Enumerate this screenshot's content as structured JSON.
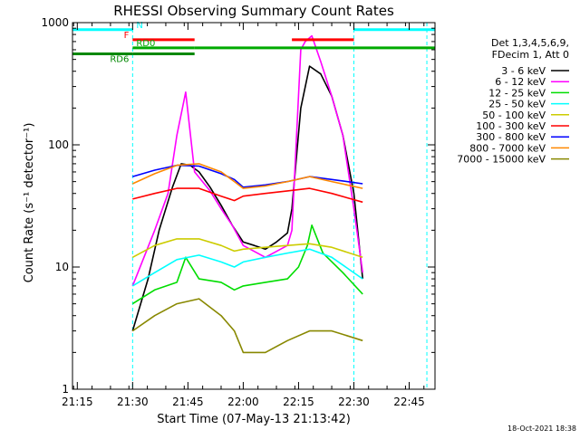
{
  "chart_data": {
    "type": "line",
    "title": "RHESSI Observing Summary Count Rates",
    "xlabel": "Start Time (07-May-13 21:13:42)",
    "ylabel": "Count Rate (s⁻¹ detector⁻¹)",
    "ylog": true,
    "ylim": [
      1,
      1000
    ],
    "xlim": [
      21.2283,
      22.8667
    ],
    "x_ticks": [
      {
        "v": 21.25,
        "label": "21:15"
      },
      {
        "v": 21.5,
        "label": "21:30"
      },
      {
        "v": 21.75,
        "label": "21:45"
      },
      {
        "v": 22.0,
        "label": "22:00"
      },
      {
        "v": 22.25,
        "label": "22:15"
      },
      {
        "v": 22.5,
        "label": "22:30"
      },
      {
        "v": 22.75,
        "label": "22:45"
      }
    ],
    "y_ticks": [
      {
        "v": 1,
        "label": "1"
      },
      {
        "v": 10,
        "label": "10"
      },
      {
        "v": 100,
        "label": "100"
      },
      {
        "v": 1000,
        "label": "1000"
      }
    ],
    "legend_header": [
      "Det 1,3,4,5,6,9,",
      "FDecim 1, Att 0"
    ],
    "legend_position": "right",
    "footer": "18-Oct-2021 18:38",
    "series": [
      {
        "name": "3 - 6 keV",
        "color": "#000000",
        "x": [
          21.5,
          21.57,
          21.62,
          21.68,
          21.72,
          21.76,
          21.8,
          21.85,
          21.9,
          21.95,
          22.0,
          22.05,
          22.1,
          22.15,
          22.2,
          22.22,
          22.26,
          22.3,
          22.35,
          22.4,
          22.45,
          22.5,
          22.54
        ],
        "values": [
          3,
          8,
          20,
          45,
          70,
          68,
          60,
          45,
          32,
          22,
          16,
          15,
          14,
          16,
          19,
          30,
          200,
          440,
          380,
          250,
          120,
          40,
          8
        ]
      },
      {
        "name": "6 - 12 keV",
        "color": "#ff00ff",
        "x": [
          21.5,
          21.6,
          21.66,
          21.7,
          21.74,
          21.78,
          21.85,
          21.9,
          21.95,
          22.0,
          22.1,
          22.2,
          22.22,
          22.26,
          22.28,
          22.31,
          22.35,
          22.4,
          22.45,
          22.5,
          22.54
        ],
        "values": [
          7,
          20,
          40,
          120,
          270,
          60,
          42,
          30,
          22,
          15,
          12,
          15,
          20,
          600,
          700,
          780,
          480,
          250,
          120,
          30,
          9
        ]
      },
      {
        "name": "12 - 25 keV",
        "color": "#00dd00",
        "x": [
          21.5,
          21.6,
          21.7,
          21.74,
          21.8,
          21.9,
          21.96,
          22.0,
          22.1,
          22.2,
          22.25,
          22.29,
          22.31,
          22.36,
          22.45,
          22.54
        ],
        "values": [
          5,
          6.5,
          7.5,
          12,
          8,
          7.5,
          6.5,
          7,
          7.5,
          8,
          10,
          15,
          22,
          13,
          9,
          6
        ]
      },
      {
        "name": "25 - 50 keV",
        "color": "#00ffff",
        "x": [
          21.5,
          21.6,
          21.7,
          21.8,
          21.9,
          21.96,
          22.0,
          22.1,
          22.2,
          22.3,
          22.4,
          22.54
        ],
        "values": [
          7,
          9,
          11.5,
          12.5,
          11,
          10,
          11,
          12,
          13,
          14,
          12,
          8
        ]
      },
      {
        "name": "50 - 100 keV",
        "color": "#cccc00",
        "x": [
          21.5,
          21.6,
          21.7,
          21.8,
          21.9,
          21.96,
          22.0,
          22.1,
          22.2,
          22.3,
          22.4,
          22.54
        ],
        "values": [
          12,
          15,
          17,
          17,
          15,
          13.5,
          14,
          14.5,
          15,
          15.5,
          14.5,
          12
        ]
      },
      {
        "name": "100 - 300 keV",
        "color": "#ff0000",
        "x": [
          21.5,
          21.6,
          21.7,
          21.8,
          21.9,
          21.96,
          22.0,
          22.1,
          22.2,
          22.3,
          22.4,
          22.54
        ],
        "values": [
          36,
          40,
          44,
          44,
          38,
          35,
          38,
          40,
          42,
          44,
          40,
          34
        ]
      },
      {
        "name": "300 - 800 keV",
        "color": "#0000ff",
        "x": [
          21.5,
          21.6,
          21.7,
          21.8,
          21.9,
          21.96,
          22.0,
          22.1,
          22.2,
          22.3,
          22.4,
          22.54
        ],
        "values": [
          55,
          62,
          68,
          67,
          58,
          52,
          45,
          47,
          50,
          55,
          52,
          48
        ]
      },
      {
        "name": "800 - 7000 keV",
        "color": "#ff8800",
        "x": [
          21.5,
          21.6,
          21.7,
          21.8,
          21.9,
          21.96,
          22.0,
          22.1,
          22.2,
          22.3,
          22.4,
          22.54
        ],
        "values": [
          48,
          58,
          68,
          70,
          60,
          50,
          44,
          46,
          50,
          55,
          50,
          44
        ]
      },
      {
        "name": "7000 - 15000 keV",
        "color": "#888800",
        "x": [
          21.5,
          21.6,
          21.7,
          21.8,
          21.9,
          21.96,
          22.0,
          22.1,
          22.2,
          22.3,
          22.4,
          22.54
        ],
        "values": [
          3,
          4,
          5,
          5.5,
          4,
          3,
          2,
          2,
          2.5,
          3,
          3,
          2.5
        ]
      }
    ],
    "flag_lines": [
      {
        "label": "N",
        "color": "#00ffff",
        "y_fraction": 0.9808,
        "segments": [
          [
            21.2283,
            21.5
          ],
          [
            22.5,
            22.8667
          ]
        ]
      },
      {
        "label": "F",
        "color": "#ff0000",
        "y_fraction": 0.9533,
        "segments": [
          [
            21.5,
            21.78
          ],
          [
            22.22,
            22.5
          ]
        ]
      },
      {
        "label": "RD0",
        "color": "#00aa00",
        "y_fraction": 0.9313,
        "segments": [
          [
            21.5,
            21.78
          ],
          [
            21.78,
            22.5
          ],
          [
            22.5,
            22.8667
          ]
        ]
      },
      {
        "label": "RD6",
        "color": "#008800",
        "y_fraction": 0.9148,
        "segments": [
          [
            21.2283,
            21.5
          ],
          [
            21.5,
            21.78
          ]
        ]
      }
    ],
    "vertical_markers": [
      {
        "x": 21.5,
        "color": "#00ffff"
      },
      {
        "x": 22.5,
        "color": "#00ffff"
      },
      {
        "x": 22.83,
        "color": "#00ffff"
      }
    ],
    "grid": false
  }
}
